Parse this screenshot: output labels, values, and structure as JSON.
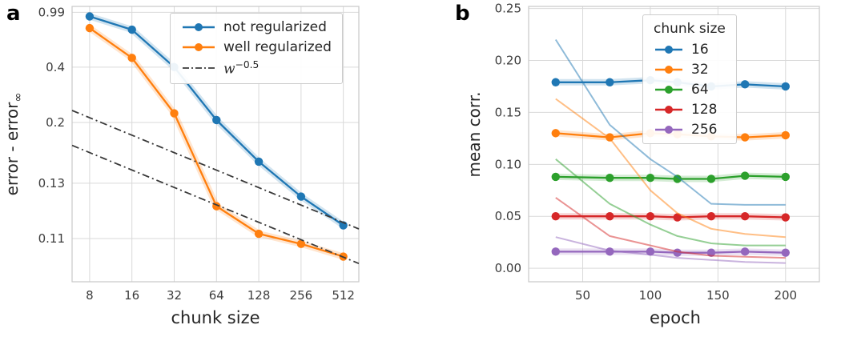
{
  "figure": {
    "panel_a_label": "a",
    "panel_b_label": "b"
  },
  "colors": {
    "blue": "#1f77b4",
    "orange": "#ff7f0e",
    "green": "#2ca02c",
    "red": "#d62728",
    "purple": "#9467bd",
    "dash": "#3a3a3a",
    "grid": "#d9d9d9",
    "frame": "#c9c9c9",
    "text": "#262626"
  },
  "chart_data": [
    {
      "id": "panel-a",
      "type": "line",
      "xlabel": "chunk size",
      "ylabel_main": "error - error",
      "ylabel_sub": "∞",
      "x_scale": "log2",
      "y_scale": "logshift",
      "y_shift": 0.1,
      "xlim": [
        6.0,
        660
      ],
      "y_domain": [
        -2.372,
        0.0
      ],
      "x_tick_values": [
        8,
        16,
        32,
        64,
        128,
        256,
        512
      ],
      "x_tick_labels": [
        "8",
        "16",
        "32",
        "64",
        "128",
        "256",
        "512"
      ],
      "y_tick_values": [
        0.99,
        0.4,
        0.2,
        0.13,
        0.11
      ],
      "y_tick_labels": [
        "0.99",
        "0.4",
        "0.2",
        "0.13",
        "0.11"
      ],
      "grid": true,
      "legend_position": "upper right",
      "series": [
        {
          "name": "not regularized",
          "color": "blue",
          "marker": true,
          "band": true,
          "x": [
            8,
            16,
            32,
            64,
            128,
            256,
            512
          ],
          "y": [
            0.92,
            0.73,
            0.4,
            0.205,
            0.146,
            0.123,
            0.113
          ]
        },
        {
          "name": "well regularized",
          "color": "orange",
          "marker": true,
          "band": true,
          "x": [
            8,
            16,
            32,
            64,
            128,
            256,
            512
          ],
          "y": [
            0.75,
            0.46,
            0.22,
            0.119,
            0.111,
            0.109,
            0.107
          ]
        },
        {
          "name": "w^-0.5 upper",
          "color": "dash",
          "dash": true,
          "width": 1.8,
          "x": [
            6,
            660
          ],
          "y": [
            0.227,
            0.1121
          ]
        },
        {
          "name": "w^-0.5 lower",
          "color": "dash",
          "dash": true,
          "width": 1.8,
          "x": [
            6,
            660
          ],
          "y": [
            0.1635,
            0.1061
          ]
        }
      ],
      "legend": {
        "items": [
          {
            "label": "not regularized",
            "color": "blue",
            "style": "line-marker"
          },
          {
            "label": "well regularized",
            "color": "orange",
            "style": "line-marker"
          },
          {
            "label_base": "w",
            "label_sup": "−0.5",
            "color": "dash",
            "style": "dashdot"
          }
        ]
      }
    },
    {
      "id": "panel-b",
      "type": "line",
      "xlabel": "epoch",
      "ylabel_main": "mean corr.",
      "x_scale": "linear",
      "y_scale": "linear",
      "xlim": [
        10,
        225
      ],
      "y_domain": [
        -0.013,
        0.252
      ],
      "x_tick_values": [
        50,
        100,
        150,
        200
      ],
      "x_tick_labels": [
        "50",
        "100",
        "150",
        "200"
      ],
      "y_tick_values": [
        0.0,
        0.05,
        0.1,
        0.15,
        0.2,
        0.25
      ],
      "y_tick_labels": [
        "0.00",
        "0.05",
        "0.10",
        "0.15",
        "0.20",
        "0.25"
      ],
      "grid": true,
      "legend_position": "upper center",
      "series": [
        {
          "name": "chunk 16",
          "color": "blue",
          "marker": true,
          "band": true,
          "x": [
            30,
            70,
            100,
            120,
            145,
            170,
            200
          ],
          "y": [
            0.179,
            0.179,
            0.181,
            0.179,
            0.175,
            0.177,
            0.175
          ]
        },
        {
          "name": "chunk 32",
          "color": "orange",
          "marker": true,
          "band": true,
          "x": [
            30,
            70,
            100,
            120,
            145,
            170,
            200
          ],
          "y": [
            0.13,
            0.126,
            0.13,
            0.129,
            0.127,
            0.126,
            0.128
          ]
        },
        {
          "name": "chunk 64",
          "color": "green",
          "marker": true,
          "band": true,
          "x": [
            30,
            70,
            100,
            120,
            145,
            170,
            200
          ],
          "y": [
            0.088,
            0.087,
            0.087,
            0.086,
            0.086,
            0.089,
            0.088
          ]
        },
        {
          "name": "chunk 128",
          "color": "red",
          "marker": true,
          "band": true,
          "x": [
            30,
            70,
            100,
            120,
            145,
            170,
            200
          ],
          "y": [
            0.05,
            0.05,
            0.05,
            0.049,
            0.05,
            0.05,
            0.049
          ]
        },
        {
          "name": "chunk 256",
          "color": "purple",
          "marker": true,
          "band": true,
          "x": [
            30,
            70,
            100,
            120,
            145,
            170,
            200
          ],
          "y": [
            0.016,
            0.016,
            0.016,
            0.015,
            0.015,
            0.016,
            0.015
          ]
        },
        {
          "name": "chunk 16 train",
          "color": "blue",
          "opacity": 0.5,
          "width": 2,
          "x": [
            30,
            70,
            100,
            120,
            145,
            170,
            200
          ],
          "y": [
            0.22,
            0.138,
            0.105,
            0.088,
            0.062,
            0.061,
            0.061
          ]
        },
        {
          "name": "chunk 32 train",
          "color": "orange",
          "opacity": 0.5,
          "width": 2,
          "x": [
            30,
            70,
            100,
            120,
            145,
            170,
            200
          ],
          "y": [
            0.163,
            0.125,
            0.075,
            0.053,
            0.038,
            0.033,
            0.03
          ]
        },
        {
          "name": "chunk 64 train",
          "color": "green",
          "opacity": 0.5,
          "width": 2,
          "x": [
            30,
            70,
            100,
            120,
            145,
            170,
            200
          ],
          "y": [
            0.105,
            0.062,
            0.042,
            0.031,
            0.024,
            0.022,
            0.022
          ]
        },
        {
          "name": "chunk 128 train",
          "color": "red",
          "opacity": 0.5,
          "width": 2,
          "x": [
            30,
            70,
            100,
            120,
            145,
            170,
            200
          ],
          "y": [
            0.068,
            0.031,
            0.022,
            0.016,
            0.012,
            0.011,
            0.01
          ]
        },
        {
          "name": "chunk 256 train",
          "color": "purple",
          "opacity": 0.5,
          "width": 2,
          "x": [
            30,
            70,
            100,
            120,
            145,
            170,
            200
          ],
          "y": [
            0.03,
            0.017,
            0.013,
            0.01,
            0.008,
            0.006,
            0.005
          ]
        }
      ],
      "legend": {
        "title": "chunk size",
        "items": [
          {
            "label": "16",
            "color": "blue",
            "style": "line-marker"
          },
          {
            "label": "32",
            "color": "orange",
            "style": "line-marker"
          },
          {
            "label": "64",
            "color": "green",
            "style": "line-marker"
          },
          {
            "label": "128",
            "color": "red",
            "style": "line-marker"
          },
          {
            "label": "256",
            "color": "purple",
            "style": "line-marker"
          }
        ]
      }
    }
  ]
}
